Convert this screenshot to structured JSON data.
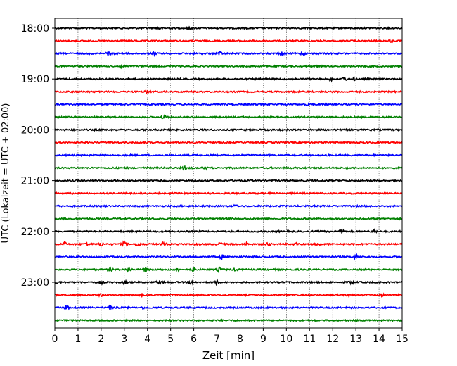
{
  "chart_data": {
    "type": "line",
    "xlabel": "Zeit  [min]",
    "ylabel": "UTC (Lokalzeit = UTC + 02:00)",
    "xlim": [
      0,
      15
    ],
    "x_ticks": [
      "0",
      "1",
      "2",
      "3",
      "4",
      "5",
      "6",
      "7",
      "8",
      "9",
      "10",
      "11",
      "12",
      "13",
      "14",
      "15"
    ],
    "y_tick_labels": [
      "18:00",
      "19:00",
      "20:00",
      "21:00",
      "22:00",
      "23:00"
    ],
    "x_grid": true,
    "trace_interval_min": 15,
    "colors": [
      "#000000",
      "#ff0000",
      "#0000ff",
      "#008000"
    ],
    "traces": [
      {
        "start": "18:00",
        "events": [
          [
            4.5,
            2
          ],
          [
            5.8,
            1.5
          ]
        ]
      },
      {
        "start": "18:15",
        "events": [
          [
            14.5,
            1.5
          ]
        ]
      },
      {
        "start": "18:30",
        "events": [
          [
            2.3,
            2.5
          ],
          [
            4.3,
            2
          ],
          [
            7.1,
            3
          ],
          [
            9.8,
            2.5
          ],
          [
            10.7,
            1.5
          ]
        ]
      },
      {
        "start": "18:45",
        "events": [
          [
            2.9,
            3
          ]
        ]
      },
      {
        "start": "19:00",
        "events": [
          [
            11.9,
            2
          ],
          [
            12.5,
            2.5
          ],
          [
            12.9,
            2
          ]
        ]
      },
      {
        "start": "19:15",
        "events": [
          [
            4.0,
            1.5
          ]
        ]
      },
      {
        "start": "19:30",
        "events": [
          [
            10.9,
            1
          ]
        ]
      },
      {
        "start": "19:45",
        "events": [
          [
            4.7,
            3
          ]
        ]
      },
      {
        "start": "20:00",
        "events": []
      },
      {
        "start": "20:15",
        "events": []
      },
      {
        "start": "20:30",
        "events": []
      },
      {
        "start": "20:45",
        "events": [
          [
            5.6,
            2
          ],
          [
            6.5,
            1.5
          ]
        ]
      },
      {
        "start": "21:00",
        "events": []
      },
      {
        "start": "21:15",
        "events": []
      },
      {
        "start": "21:30",
        "events": [
          [
            7.8,
            1
          ]
        ]
      },
      {
        "start": "21:45",
        "events": []
      },
      {
        "start": "22:00",
        "events": [
          [
            12.4,
            3
          ],
          [
            13.8,
            2.5
          ]
        ]
      },
      {
        "start": "22:15",
        "events": [
          [
            0.4,
            2.5
          ],
          [
            1.4,
            2.5
          ],
          [
            2.0,
            3
          ],
          [
            3.0,
            2.5
          ],
          [
            3.6,
            3
          ],
          [
            4.7,
            2
          ],
          [
            7.1,
            2
          ],
          [
            8.3,
            1.5
          ],
          [
            9.2,
            2.5
          ],
          [
            10.4,
            1.5
          ],
          [
            11.4,
            2
          ]
        ]
      },
      {
        "start": "22:30",
        "events": [
          [
            7.2,
            3
          ],
          [
            13.0,
            2.5
          ]
        ]
      },
      {
        "start": "22:45",
        "events": [
          [
            2.4,
            2
          ],
          [
            3.2,
            2.5
          ],
          [
            3.9,
            3
          ],
          [
            5.3,
            2.5
          ],
          [
            6.0,
            2
          ],
          [
            7.1,
            2.5
          ],
          [
            7.8,
            1.5
          ]
        ]
      },
      {
        "start": "23:00",
        "events": [
          [
            0.1,
            1.5
          ],
          [
            2.0,
            1.5
          ],
          [
            3.0,
            2
          ],
          [
            4.5,
            3
          ],
          [
            5.9,
            2.5
          ],
          [
            7.0,
            2
          ],
          [
            12.8,
            2
          ]
        ]
      },
      {
        "start": "23:15",
        "events": [
          [
            2.0,
            1.5
          ],
          [
            3.8,
            1.5
          ],
          [
            10.0,
            1.5
          ],
          [
            12.7,
            2
          ],
          [
            14.1,
            1.5
          ]
        ]
      },
      {
        "start": "23:30",
        "events": [
          [
            0.5,
            2.5
          ],
          [
            2.4,
            2
          ],
          [
            3.8,
            1
          ]
        ]
      },
      {
        "start": "23:45",
        "events": []
      }
    ]
  }
}
